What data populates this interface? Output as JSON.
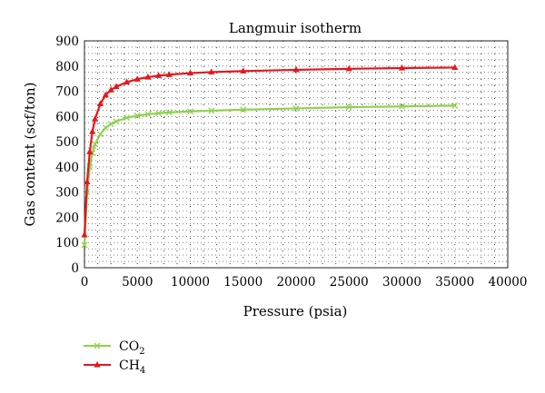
{
  "chart_data": {
    "type": "line",
    "title": "Langmuir isotherm",
    "xlabel": "Pressure (psia)",
    "ylabel": "Gas content (scf/ton)",
    "xlim": [
      0,
      40000
    ],
    "ylim": [
      0,
      900
    ],
    "xticks": [
      "0",
      "5000",
      "10000",
      "15000",
      "20000",
      "25000",
      "30000",
      "35000",
      "40000"
    ],
    "yticks": [
      "0",
      "100",
      "200",
      "300",
      "400",
      "500",
      "600",
      "700",
      "800",
      "900"
    ],
    "grid": true,
    "legend_position": "bottom-left",
    "series": [
      {
        "name": "CO2",
        "name_base": "CO",
        "name_sub": "2",
        "color": "#8fd14f",
        "marker": "x",
        "x": [
          0,
          250,
          500,
          750,
          1000,
          1500,
          2000,
          2500,
          3000,
          4000,
          5000,
          6000,
          7000,
          8000,
          10000,
          12000,
          15000,
          20000,
          25000,
          30000,
          35000
        ],
        "y": [
          90,
          300,
          400,
          455,
          490,
          530,
          555,
          570,
          580,
          595,
          603,
          609,
          613,
          616,
          620,
          623,
          627,
          632,
          637,
          640,
          643
        ]
      },
      {
        "name": "CH4",
        "name_base": "CH",
        "name_sub": "4",
        "color": "#e8161c",
        "marker": "triangle",
        "x": [
          0,
          250,
          500,
          750,
          1000,
          1500,
          2000,
          2500,
          3000,
          4000,
          5000,
          6000,
          7000,
          8000,
          10000,
          12000,
          15000,
          20000,
          25000,
          30000,
          35000
        ],
        "y": [
          130,
          340,
          460,
          540,
          590,
          650,
          685,
          705,
          718,
          736,
          748,
          756,
          762,
          766,
          772,
          776,
          780,
          785,
          789,
          792,
          794
        ]
      }
    ]
  }
}
